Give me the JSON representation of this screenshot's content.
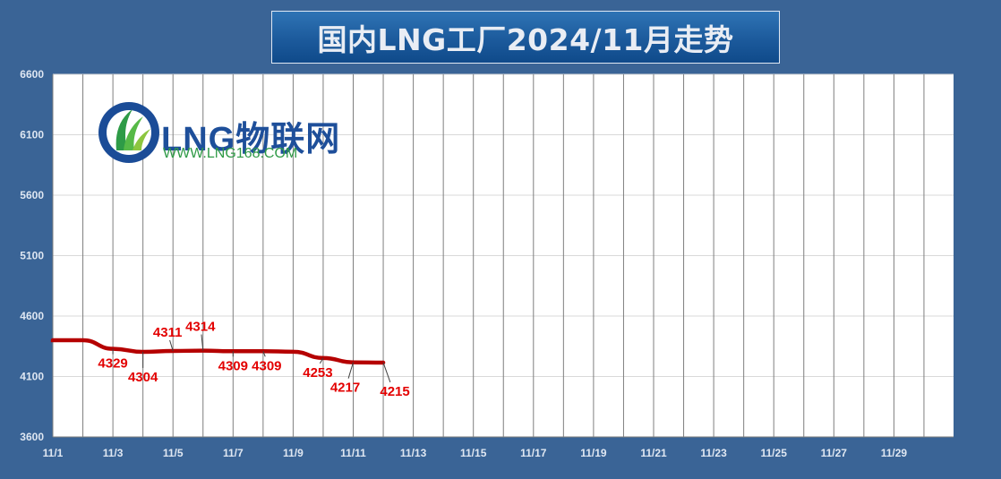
{
  "title": "国内LNG工厂2024/11月走势",
  "logo": {
    "brand": "LNG物联网",
    "url": "WWW.LNG168.COM"
  },
  "colors": {
    "background": "#3a6496",
    "plot": "#ffffff",
    "line": "#b50000",
    "label": "#e30000"
  },
  "chart_data": {
    "type": "line",
    "title": "国内LNG工厂2024/11月走势",
    "xlabel": "",
    "ylabel": "",
    "ylim": [
      3600,
      6600
    ],
    "yticks": [
      3600,
      4100,
      4600,
      5100,
      5600,
      6100,
      6600
    ],
    "x_categories": [
      "11/1",
      "11/2",
      "11/3",
      "11/4",
      "11/5",
      "11/6",
      "11/7",
      "11/8",
      "11/9",
      "11/10",
      "11/11",
      "11/12",
      "11/13",
      "11/14",
      "11/15",
      "11/16",
      "11/17",
      "11/18",
      "11/19",
      "11/20",
      "11/21",
      "11/22",
      "11/23",
      "11/24",
      "11/25",
      "11/26",
      "11/27",
      "11/28",
      "11/29",
      "11/30"
    ],
    "xtick_labels": [
      "11/1",
      "11/3",
      "11/5",
      "11/7",
      "11/9",
      "11/11",
      "11/13",
      "11/15",
      "11/17",
      "11/19",
      "11/21",
      "11/23",
      "11/25",
      "11/27",
      "11/29"
    ],
    "grid": true,
    "series": [
      {
        "x": [
          "11/1",
          "11/2",
          "11/3",
          "11/4",
          "11/5",
          "11/6",
          "11/7",
          "11/8",
          "11/9",
          "11/10",
          "11/11",
          "11/12"
        ],
        "values": [
          4400,
          4400,
          4329,
          4304,
          4311,
          4314,
          4309,
          4309,
          4305,
          4253,
          4217,
          4215
        ]
      }
    ],
    "data_labels": [
      {
        "x": "11/3",
        "text": "4329"
      },
      {
        "x": "11/4",
        "text": "4304"
      },
      {
        "x": "11/5",
        "text": "4311"
      },
      {
        "x": "11/6",
        "text": "4314"
      },
      {
        "x": "11/7",
        "text": "4309"
      },
      {
        "x": "11/8",
        "text": "4309"
      },
      {
        "x": "11/10",
        "text": "4253"
      },
      {
        "x": "11/11",
        "text": "4217"
      },
      {
        "x": "11/12",
        "text": "4215"
      }
    ]
  }
}
